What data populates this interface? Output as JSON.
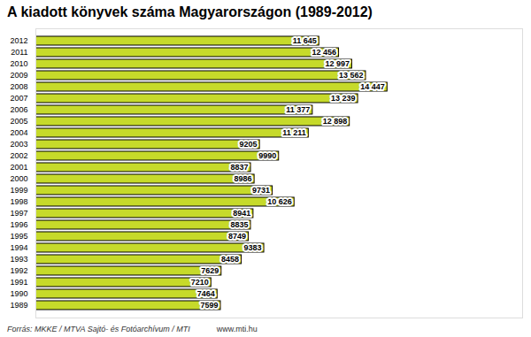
{
  "chart_data": {
    "type": "bar",
    "orientation": "horizontal",
    "title": "A kiadott könyvek száma Magyarországon (1989-2012)",
    "source": "Forrás: MKKE / MTVA Sajtó- és Fotóarchívum / MTI",
    "url": "www.mti.hu",
    "categories": [
      "2012",
      "2011",
      "2010",
      "2009",
      "2008",
      "2007",
      "2006",
      "2005",
      "2004",
      "2003",
      "2002",
      "2001",
      "2000",
      "1999",
      "1998",
      "1997",
      "1996",
      "1995",
      "1994",
      "1993",
      "1992",
      "1991",
      "1990",
      "1989"
    ],
    "values": [
      11645,
      12456,
      12997,
      13562,
      14447,
      13239,
      11377,
      12898,
      11211,
      9205,
      9990,
      8837,
      8986,
      9731,
      10626,
      8941,
      8835,
      8749,
      9383,
      8458,
      7629,
      7210,
      7464,
      7599
    ],
    "value_labels": [
      "11 645",
      "12 456",
      "12 997",
      "13 562",
      "14 447",
      "13 239",
      "11 377",
      "12 898",
      "11 211",
      "9205",
      "9990",
      "8837",
      "8986",
      "9731",
      "10 626",
      "8941",
      "8835",
      "8749",
      "9383",
      "8458",
      "7629",
      "7210",
      "7464",
      "7599"
    ],
    "color": "#c6da2a",
    "xlim": [
      0,
      20000
    ],
    "xticks": [],
    "grid": false,
    "data_labels": true,
    "tick_labels": "y"
  }
}
